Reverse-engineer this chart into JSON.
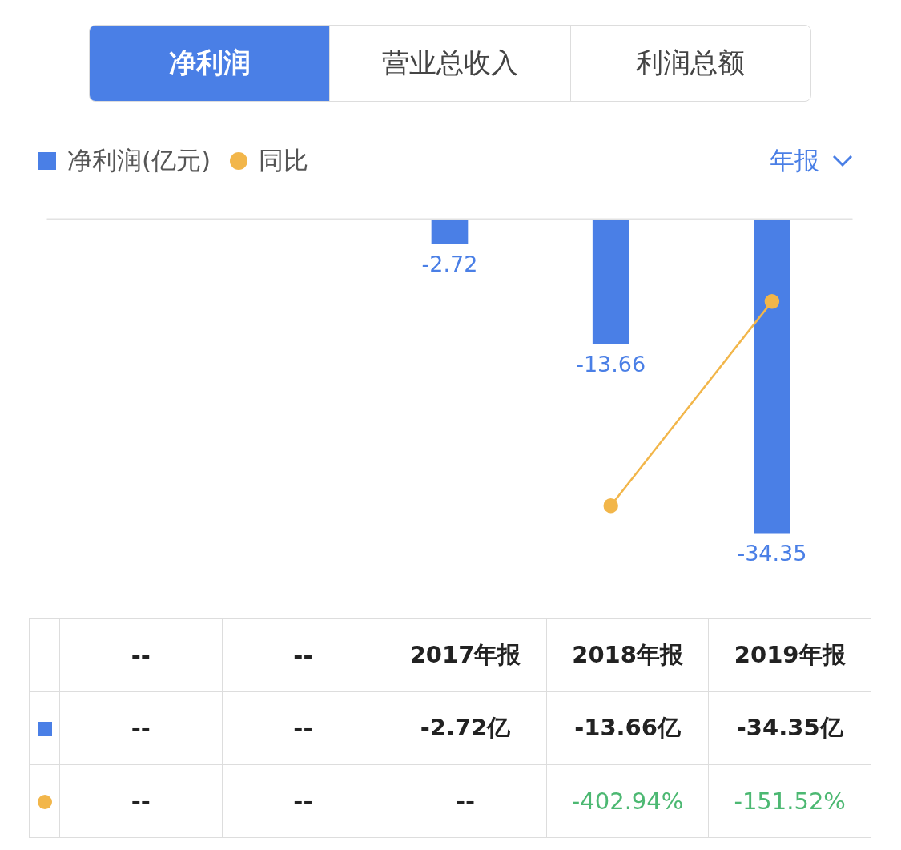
{
  "chart_data": {
    "type": "bar",
    "categories": [
      "--",
      "--",
      "2017年报",
      "2018年报",
      "2019年报"
    ],
    "series": [
      {
        "name": "净利润(亿元)",
        "color": "#4a7fe6",
        "values": [
          null,
          null,
          -2.72,
          -13.66,
          -34.35
        ]
      },
      {
        "name": "同比",
        "type": "line",
        "axis": "y2",
        "color": "#f2b64a",
        "values": [
          null,
          null,
          null,
          -402.94,
          -151.52
        ],
        "value_labels": [
          "--",
          "--",
          "--",
          "-402.94%",
          "-151.52%"
        ]
      }
    ],
    "data_labels": true,
    "legend": "top left",
    "marker": "circle",
    "tick_labels": false,
    "annotations": [
      "净利润",
      "营业总收入",
      "利润总额",
      "年报",
      "--",
      "--",
      "-2.72亿",
      "-13.66亿",
      "-34.35亿"
    ]
  }
}
